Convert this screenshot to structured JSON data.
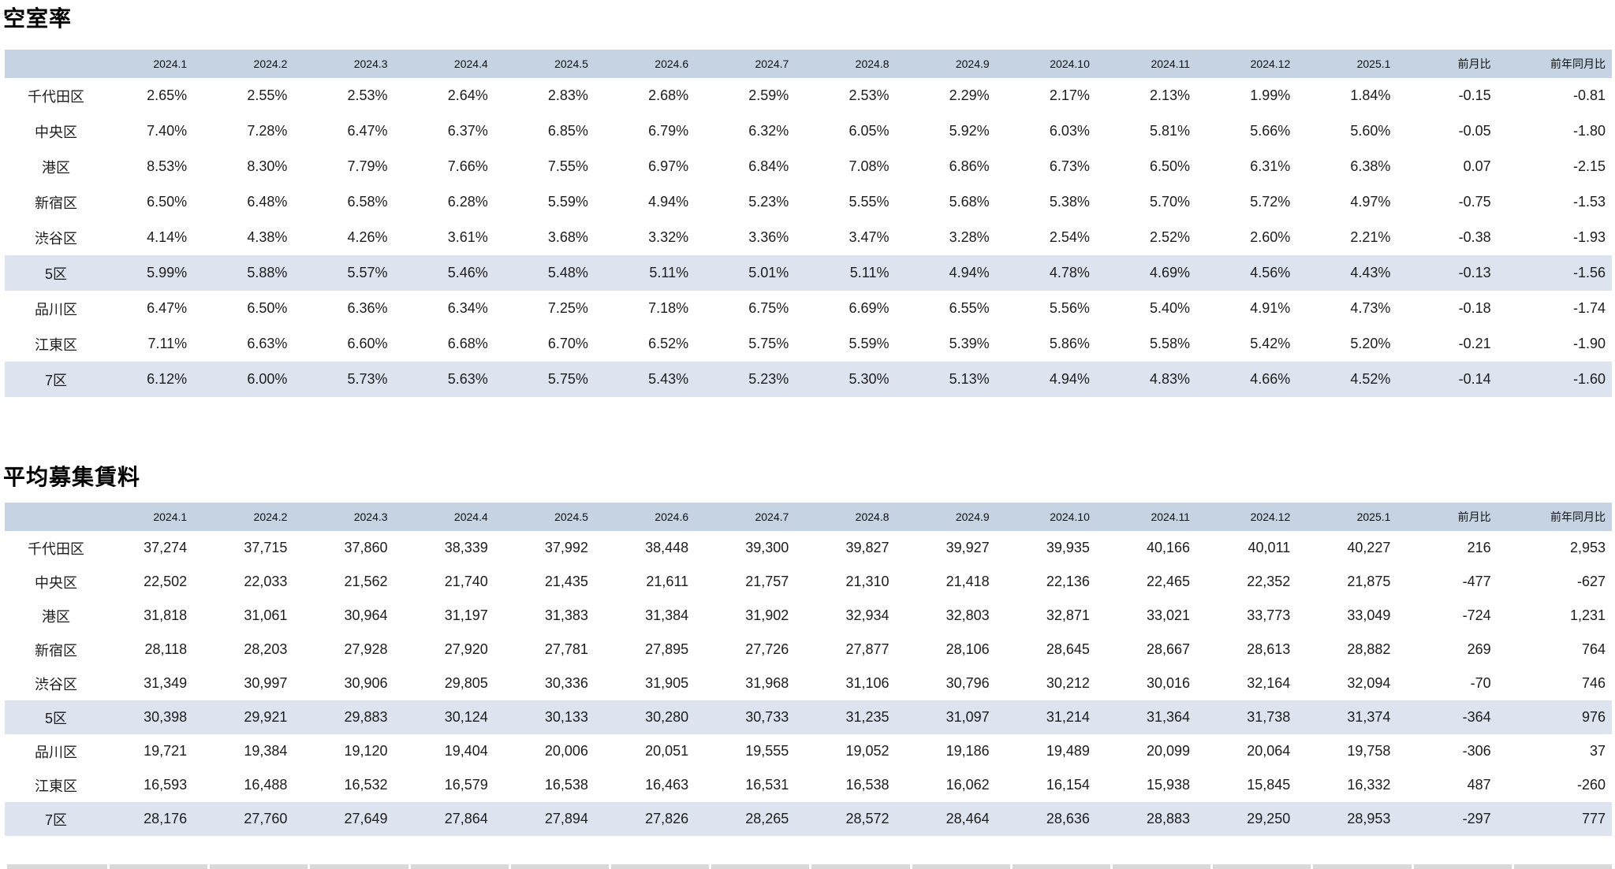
{
  "tables": [
    {
      "id": "vacancy",
      "title": "空室率",
      "columns": [
        "2024.1",
        "2024.2",
        "2024.3",
        "2024.4",
        "2024.5",
        "2024.6",
        "2024.7",
        "2024.8",
        "2024.9",
        "2024.10",
        "2024.11",
        "2024.12",
        "2025.1",
        "前月比",
        "前年同月比"
      ],
      "rows": [
        {
          "label": "千代田区",
          "highlight": false,
          "values": [
            "2.65%",
            "2.55%",
            "2.53%",
            "2.64%",
            "2.83%",
            "2.68%",
            "2.59%",
            "2.53%",
            "2.29%",
            "2.17%",
            "2.13%",
            "1.99%",
            "1.84%",
            "-0.15",
            "-0.81"
          ]
        },
        {
          "label": "中央区",
          "highlight": false,
          "values": [
            "7.40%",
            "7.28%",
            "6.47%",
            "6.37%",
            "6.85%",
            "6.79%",
            "6.32%",
            "6.05%",
            "5.92%",
            "6.03%",
            "5.81%",
            "5.66%",
            "5.60%",
            "-0.05",
            "-1.80"
          ]
        },
        {
          "label": "港区",
          "highlight": false,
          "values": [
            "8.53%",
            "8.30%",
            "7.79%",
            "7.66%",
            "7.55%",
            "6.97%",
            "6.84%",
            "7.08%",
            "6.86%",
            "6.73%",
            "6.50%",
            "6.31%",
            "6.38%",
            "0.07",
            "-2.15"
          ]
        },
        {
          "label": "新宿区",
          "highlight": false,
          "values": [
            "6.50%",
            "6.48%",
            "6.58%",
            "6.28%",
            "5.59%",
            "4.94%",
            "5.23%",
            "5.55%",
            "5.68%",
            "5.38%",
            "5.70%",
            "5.72%",
            "4.97%",
            "-0.75",
            "-1.53"
          ]
        },
        {
          "label": "渋谷区",
          "highlight": false,
          "values": [
            "4.14%",
            "4.38%",
            "4.26%",
            "3.61%",
            "3.68%",
            "3.32%",
            "3.36%",
            "3.47%",
            "3.28%",
            "2.54%",
            "2.52%",
            "2.60%",
            "2.21%",
            "-0.38",
            "-1.93"
          ]
        },
        {
          "label": "5区",
          "highlight": true,
          "values": [
            "5.99%",
            "5.88%",
            "5.57%",
            "5.46%",
            "5.48%",
            "5.11%",
            "5.01%",
            "5.11%",
            "4.94%",
            "4.78%",
            "4.69%",
            "4.56%",
            "4.43%",
            "-0.13",
            "-1.56"
          ]
        },
        {
          "label": "品川区",
          "highlight": false,
          "values": [
            "6.47%",
            "6.50%",
            "6.36%",
            "6.34%",
            "7.25%",
            "7.18%",
            "6.75%",
            "6.69%",
            "6.55%",
            "5.56%",
            "5.40%",
            "4.91%",
            "4.73%",
            "-0.18",
            "-1.74"
          ]
        },
        {
          "label": "江東区",
          "highlight": false,
          "values": [
            "7.11%",
            "6.63%",
            "6.60%",
            "6.68%",
            "6.70%",
            "6.52%",
            "5.75%",
            "5.59%",
            "5.39%",
            "5.86%",
            "5.58%",
            "5.42%",
            "5.20%",
            "-0.21",
            "-1.90"
          ]
        },
        {
          "label": "7区",
          "highlight": true,
          "values": [
            "6.12%",
            "6.00%",
            "5.73%",
            "5.63%",
            "5.75%",
            "5.43%",
            "5.23%",
            "5.30%",
            "5.13%",
            "4.94%",
            "4.83%",
            "4.66%",
            "4.52%",
            "-0.14",
            "-1.60"
          ]
        }
      ]
    },
    {
      "id": "rent",
      "title": "平均募集賃料",
      "columns": [
        "2024.1",
        "2024.2",
        "2024.3",
        "2024.4",
        "2024.5",
        "2024.6",
        "2024.7",
        "2024.8",
        "2024.9",
        "2024.10",
        "2024.11",
        "2024.12",
        "2025.1",
        "前月比",
        "前年同月比"
      ],
      "rows": [
        {
          "label": "千代田区",
          "highlight": false,
          "values": [
            "37,274",
            "37,715",
            "37,860",
            "38,339",
            "37,992",
            "38,448",
            "39,300",
            "39,827",
            "39,927",
            "39,935",
            "40,166",
            "40,011",
            "40,227",
            "216",
            "2,953"
          ]
        },
        {
          "label": "中央区",
          "highlight": false,
          "values": [
            "22,502",
            "22,033",
            "21,562",
            "21,740",
            "21,435",
            "21,611",
            "21,757",
            "21,310",
            "21,418",
            "22,136",
            "22,465",
            "22,352",
            "21,875",
            "-477",
            "-627"
          ]
        },
        {
          "label": "港区",
          "highlight": false,
          "values": [
            "31,818",
            "31,061",
            "30,964",
            "31,197",
            "31,383",
            "31,384",
            "31,902",
            "32,934",
            "32,803",
            "32,871",
            "33,021",
            "33,773",
            "33,049",
            "-724",
            "1,231"
          ]
        },
        {
          "label": "新宿区",
          "highlight": false,
          "values": [
            "28,118",
            "28,203",
            "27,928",
            "27,920",
            "27,781",
            "27,895",
            "27,726",
            "27,877",
            "28,106",
            "28,645",
            "28,667",
            "28,613",
            "28,882",
            "269",
            "764"
          ]
        },
        {
          "label": "渋谷区",
          "highlight": false,
          "values": [
            "31,349",
            "30,997",
            "30,906",
            "29,805",
            "30,336",
            "31,905",
            "31,968",
            "31,106",
            "30,796",
            "30,212",
            "30,016",
            "32,164",
            "32,094",
            "-70",
            "746"
          ]
        },
        {
          "label": "5区",
          "highlight": true,
          "values": [
            "30,398",
            "29,921",
            "29,883",
            "30,124",
            "30,133",
            "30,280",
            "30,733",
            "31,235",
            "31,097",
            "31,214",
            "31,364",
            "31,738",
            "31,374",
            "-364",
            "976"
          ]
        },
        {
          "label": "品川区",
          "highlight": false,
          "values": [
            "19,721",
            "19,384",
            "19,120",
            "19,404",
            "20,006",
            "20,051",
            "19,555",
            "19,052",
            "19,186",
            "19,489",
            "20,099",
            "20,064",
            "19,758",
            "-306",
            "37"
          ]
        },
        {
          "label": "江東区",
          "highlight": false,
          "values": [
            "16,593",
            "16,488",
            "16,532",
            "16,579",
            "16,538",
            "16,463",
            "16,531",
            "16,538",
            "16,062",
            "16,154",
            "15,938",
            "15,845",
            "16,332",
            "487",
            "-260"
          ]
        },
        {
          "label": "7区",
          "highlight": true,
          "values": [
            "28,176",
            "27,760",
            "27,649",
            "27,864",
            "27,894",
            "27,826",
            "28,265",
            "28,572",
            "28,464",
            "28,636",
            "28,883",
            "29,250",
            "28,953",
            "-297",
            "777"
          ]
        }
      ]
    }
  ],
  "colors": {
    "header_bg": "#c5d3e3",
    "highlight_bg": "#dee4ef",
    "cutoff_bg": "#d9d9d9",
    "text": "#1c1c1c"
  }
}
